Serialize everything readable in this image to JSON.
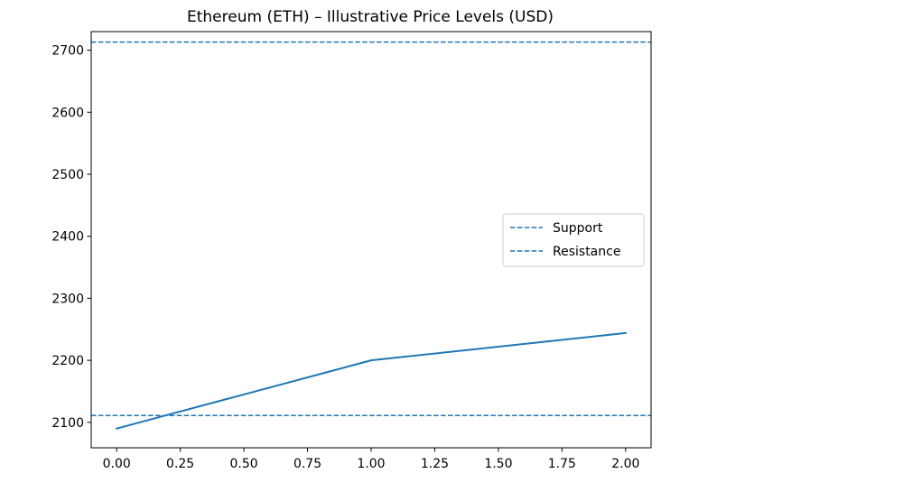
{
  "chart_data": {
    "type": "line",
    "title": "Ethereum (ETH) – Illustrative Price Levels (USD)",
    "xlabel": "",
    "ylabel": "",
    "xlim": [
      -0.1,
      2.1
    ],
    "ylim": [
      2059,
      2730
    ],
    "x_ticks": [
      "0.00",
      "0.25",
      "0.50",
      "0.75",
      "1.00",
      "1.25",
      "1.50",
      "1.75",
      "2.00"
    ],
    "x_tick_values": [
      0,
      0.25,
      0.5,
      0.75,
      1.0,
      1.25,
      1.5,
      1.75,
      2.0
    ],
    "y_ticks": [
      "2100",
      "2200",
      "2300",
      "2400",
      "2500",
      "2600",
      "2700"
    ],
    "y_tick_values": [
      2100,
      2200,
      2300,
      2400,
      2500,
      2600,
      2700
    ],
    "grid": false,
    "series": [
      {
        "name": "",
        "style": "solid",
        "color": "#1f77b4",
        "x": [
          0,
          1,
          2
        ],
        "y": [
          2090,
          2200,
          2244
        ]
      }
    ],
    "hlines": [
      {
        "name": "Support",
        "y": 2111,
        "style": "dashed",
        "color": "#1f77b4"
      },
      {
        "name": "Resistance",
        "y": 2713,
        "style": "dashed",
        "color": "#1f77b4"
      }
    ],
    "legend": {
      "placement": "center-right",
      "entries": [
        "Support",
        "Resistance"
      ]
    }
  }
}
